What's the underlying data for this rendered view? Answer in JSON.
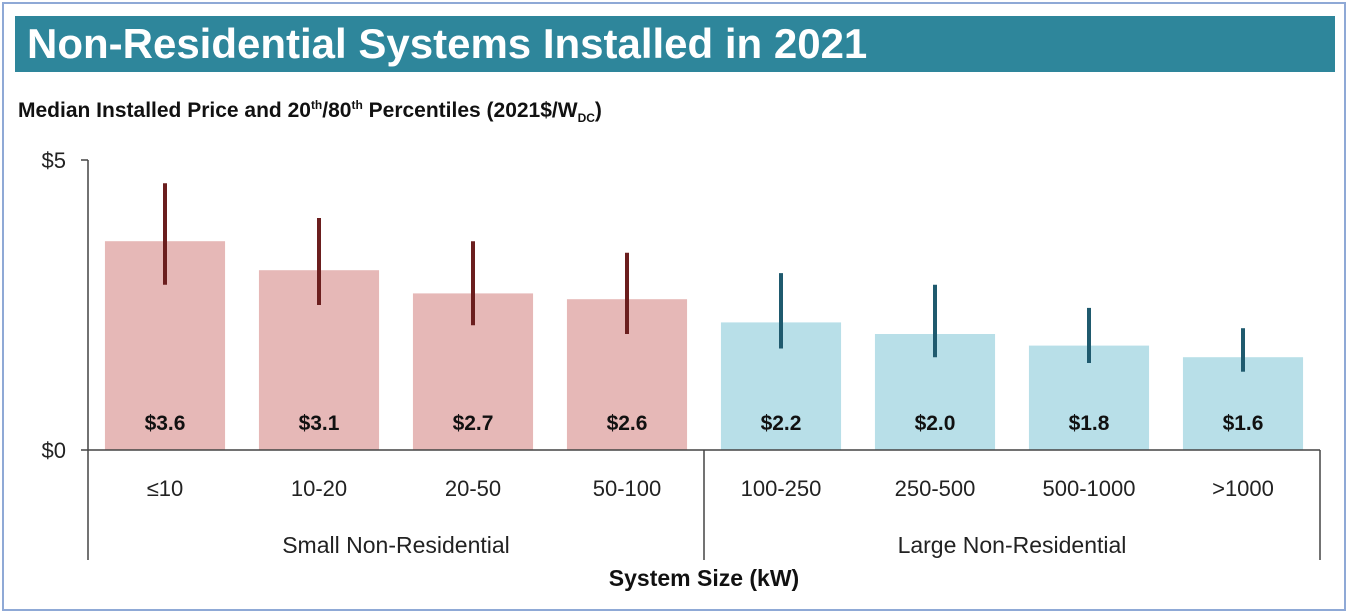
{
  "banner": {
    "title": "Non-Residential Systems Installed in 2021"
  },
  "subtitle": {
    "pre": "Median Installed Price and 20",
    "sup1": "th",
    "mid": "/80",
    "sup2": "th",
    "post": " Percentiles (2021$/W",
    "sub": "DC",
    "end": ")"
  },
  "colors": {
    "banner": "#2e869b",
    "small_bar": "#e6b8b7",
    "small_whisker": "#6b1e1e",
    "large_bar": "#b8dfe8",
    "large_whisker": "#1f5a6e"
  },
  "chart_data": {
    "type": "bar",
    "title": "Median Installed Price and 20th/80th Percentiles (2021$/WDC)",
    "xlabel": "System Size (kW)",
    "ylabel": "",
    "ylim": [
      0,
      5
    ],
    "yticks": [
      "$0",
      "$5"
    ],
    "categories": [
      "≤10",
      "10-20",
      "20-50",
      "50-100",
      "100-250",
      "250-500",
      "500-1000",
      ">1000"
    ],
    "values": [
      3.6,
      3.1,
      2.7,
      2.6,
      2.2,
      2.0,
      1.8,
      1.6
    ],
    "value_labels": [
      "$3.6",
      "$3.1",
      "$2.7",
      "$2.6",
      "$2.2",
      "$2.0",
      "$1.8",
      "$1.6"
    ],
    "p20": [
      2.85,
      2.5,
      2.15,
      2.0,
      1.75,
      1.6,
      1.5,
      1.35
    ],
    "p80": [
      4.6,
      4.0,
      3.6,
      3.4,
      3.05,
      2.85,
      2.45,
      2.1
    ],
    "groups": [
      {
        "name": "Small Non-Residential",
        "from": 0,
        "to": 3
      },
      {
        "name": "Large Non-Residential",
        "from": 4,
        "to": 7
      }
    ]
  }
}
